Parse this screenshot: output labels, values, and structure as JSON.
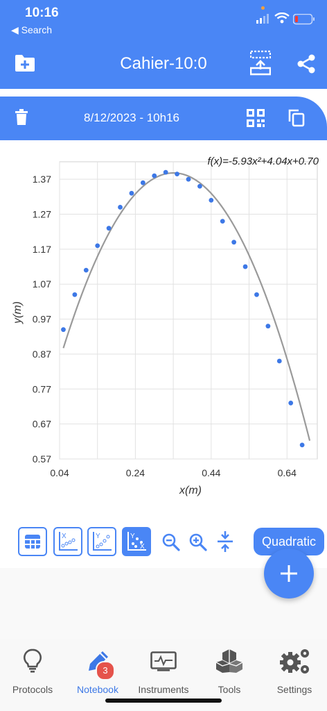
{
  "status_bar": {
    "time": "10:16",
    "back_label": "◀ Search"
  },
  "header": {
    "title": "Cahier-10:0"
  },
  "date_bar": {
    "date": "8/12/2023 - 10h16"
  },
  "chart_data": {
    "type": "scatter",
    "equation": "f(x)=-5.93x²+4.04x+0.70",
    "xlabel": "x(m)",
    "ylabel": "y(m)",
    "xlim": [
      0.04,
      0.72
    ],
    "ylim": [
      0.57,
      1.42
    ],
    "x_ticks": [
      0.04,
      0.24,
      0.44,
      0.64
    ],
    "x_tick_labels": [
      "0.04",
      "0.24",
      "0.44",
      "0.64"
    ],
    "y_ticks": [
      0.57,
      0.67,
      0.77,
      0.87,
      0.97,
      1.07,
      1.17,
      1.27,
      1.37
    ],
    "y_tick_labels": [
      "0.57",
      "0.67",
      "0.77",
      "0.87",
      "0.97",
      "1.07",
      "1.17",
      "1.27",
      "1.37"
    ],
    "fit": {
      "a": -5.93,
      "b": 4.04,
      "c": 0.7,
      "x_range": [
        0.05,
        0.7
      ]
    },
    "points": [
      {
        "x": 0.05,
        "y": 0.94
      },
      {
        "x": 0.08,
        "y": 1.04
      },
      {
        "x": 0.11,
        "y": 1.11
      },
      {
        "x": 0.14,
        "y": 1.18
      },
      {
        "x": 0.17,
        "y": 1.23
      },
      {
        "x": 0.2,
        "y": 1.29
      },
      {
        "x": 0.23,
        "y": 1.33
      },
      {
        "x": 0.26,
        "y": 1.36
      },
      {
        "x": 0.29,
        "y": 1.38
      },
      {
        "x": 0.32,
        "y": 1.39
      },
      {
        "x": 0.35,
        "y": 1.385
      },
      {
        "x": 0.38,
        "y": 1.37
      },
      {
        "x": 0.41,
        "y": 1.35
      },
      {
        "x": 0.44,
        "y": 1.31
      },
      {
        "x": 0.47,
        "y": 1.25
      },
      {
        "x": 0.5,
        "y": 1.19
      },
      {
        "x": 0.53,
        "y": 1.12
      },
      {
        "x": 0.56,
        "y": 1.04
      },
      {
        "x": 0.59,
        "y": 0.95
      },
      {
        "x": 0.62,
        "y": 0.85
      },
      {
        "x": 0.65,
        "y": 0.73
      },
      {
        "x": 0.68,
        "y": 0.61
      }
    ],
    "colors": {
      "points": "#3d78e6",
      "fit_line": "#9a9a9a",
      "grid": "#e2e2e2"
    }
  },
  "toolbar": {
    "buttons": [
      {
        "name": "table-view",
        "icon": "table-icon",
        "active": false
      },
      {
        "name": "graph-x",
        "icon": "graph-x-icon",
        "active": false
      },
      {
        "name": "graph-y",
        "icon": "graph-y-icon",
        "active": false
      },
      {
        "name": "graph-xy",
        "icon": "scatter-xy-icon",
        "active": true
      }
    ],
    "fit_label": "Quadratic"
  },
  "nav": {
    "items": [
      {
        "label": "Protocols",
        "icon": "lightbulb-icon",
        "active": false
      },
      {
        "label": "Notebook",
        "icon": "pen-icon",
        "active": true,
        "badge": "3"
      },
      {
        "label": "Instruments",
        "icon": "monitor-icon",
        "active": false
      },
      {
        "label": "Tools",
        "icon": "cubes-icon",
        "active": false
      },
      {
        "label": "Settings",
        "icon": "gears-icon",
        "active": false
      }
    ]
  },
  "colors": {
    "accent": "#4a86f5",
    "active_nav": "#3d78e6",
    "badge": "#e5534b"
  }
}
